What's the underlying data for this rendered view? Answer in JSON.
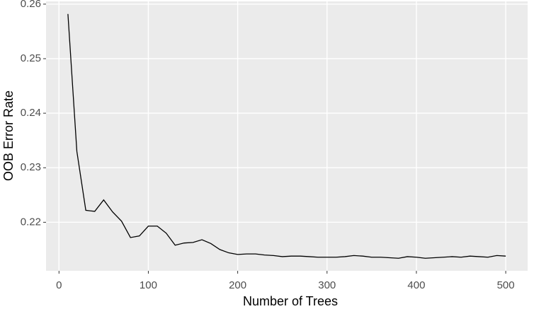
{
  "chart_data": {
    "type": "line",
    "x_label": "Number of Trees",
    "y_label": "OOB Error Rate",
    "x": [
      10,
      20,
      30,
      40,
      50,
      60,
      70,
      80,
      90,
      100,
      110,
      120,
      130,
      140,
      150,
      160,
      170,
      180,
      190,
      200,
      210,
      220,
      230,
      240,
      250,
      260,
      270,
      280,
      290,
      300,
      310,
      320,
      330,
      340,
      350,
      360,
      370,
      380,
      390,
      400,
      410,
      420,
      430,
      440,
      450,
      460,
      470,
      480,
      490,
      500
    ],
    "series": [
      {
        "color": "#000000",
        "values": [
          0.2582,
          0.233,
          0.2222,
          0.222,
          0.2241,
          0.2219,
          0.2202,
          0.2172,
          0.2175,
          0.2193,
          0.2193,
          0.218,
          0.2158,
          0.2162,
          0.2163,
          0.2168,
          0.2161,
          0.215,
          0.2144,
          0.2141,
          0.2142,
          0.2142,
          0.214,
          0.2139,
          0.2137,
          0.2138,
          0.2138,
          0.2137,
          0.2136,
          0.2136,
          0.2136,
          0.2137,
          0.2139,
          0.2138,
          0.2136,
          0.2136,
          0.2135,
          0.2134,
          0.2137,
          0.2136,
          0.2134,
          0.2135,
          0.2136,
          0.2137,
          0.2136,
          0.2138,
          0.2137,
          0.2136,
          0.2139,
          0.2138
        ]
      }
    ],
    "xlim": [
      -14.5,
      524.5
    ],
    "xticks": [
      0,
      100,
      200,
      300,
      400,
      500
    ],
    "ylim": [
      0.2111,
      0.2605
    ],
    "yticks": [
      0.22,
      0.23,
      0.24,
      0.25,
      0.26
    ],
    "grid": true
  }
}
